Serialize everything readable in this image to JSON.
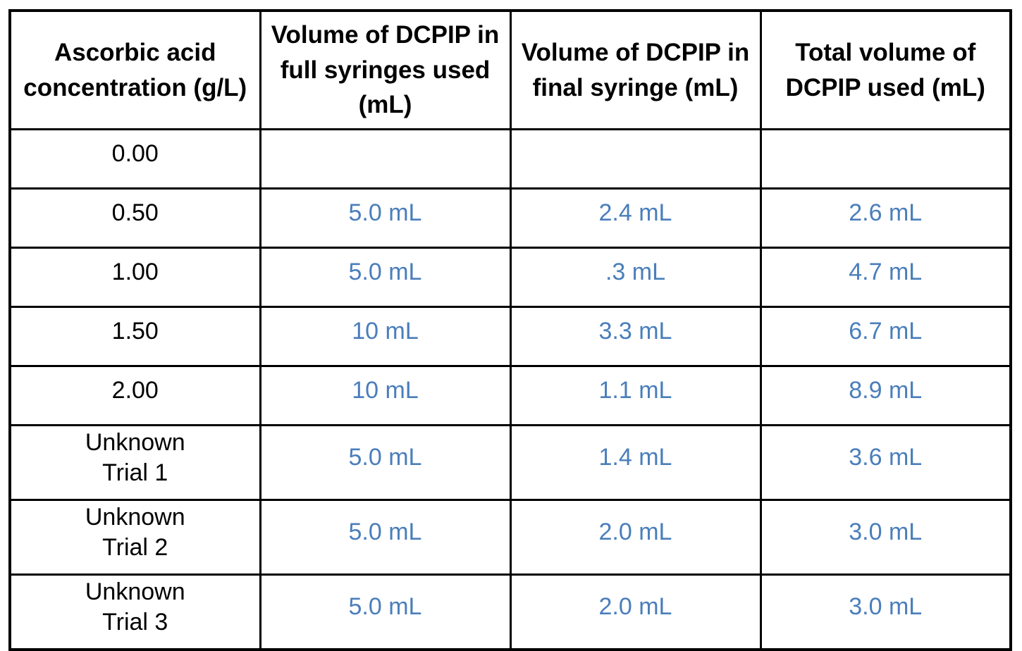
{
  "page": {
    "background": "#FFFFFF"
  },
  "colors": {
    "value_text": "#4A7EBB",
    "header_text": "#000000",
    "border": "#000000"
  },
  "table": {
    "headers": [
      "Ascorbic acid concentration (g/L)",
      "Volume of DCPIP in full syringes used (mL)",
      "Volume of DCPIP in final syringe (mL)",
      "Total volume of DCPIP used (mL)"
    ],
    "rows": [
      {
        "concentration": "0.00",
        "values": [
          "",
          "",
          ""
        ]
      },
      {
        "concentration": "0.50",
        "values": [
          "5.0 mL",
          "2.4 mL",
          "2.6 mL"
        ]
      },
      {
        "concentration": "1.00",
        "values": [
          "5.0 mL",
          ".3 mL",
          "4.7 mL"
        ]
      },
      {
        "concentration": "1.50",
        "values": [
          "10 mL",
          "3.3 mL",
          "6.7 mL"
        ]
      },
      {
        "concentration": "2.00",
        "values": [
          "10 mL",
          "1.1 mL",
          "8.9 mL"
        ]
      },
      {
        "concentration": "Unknown\nTrial 1",
        "values": [
          "5.0 mL",
          "1.4 mL",
          "3.6 mL"
        ]
      },
      {
        "concentration": "Unknown\nTrial 2",
        "values": [
          "5.0 mL",
          "2.0 mL",
          "3.0 mL"
        ]
      },
      {
        "concentration": "Unknown\nTrial 3",
        "values": [
          "5.0 mL",
          "2.0 mL",
          "3.0 mL"
        ]
      }
    ]
  }
}
